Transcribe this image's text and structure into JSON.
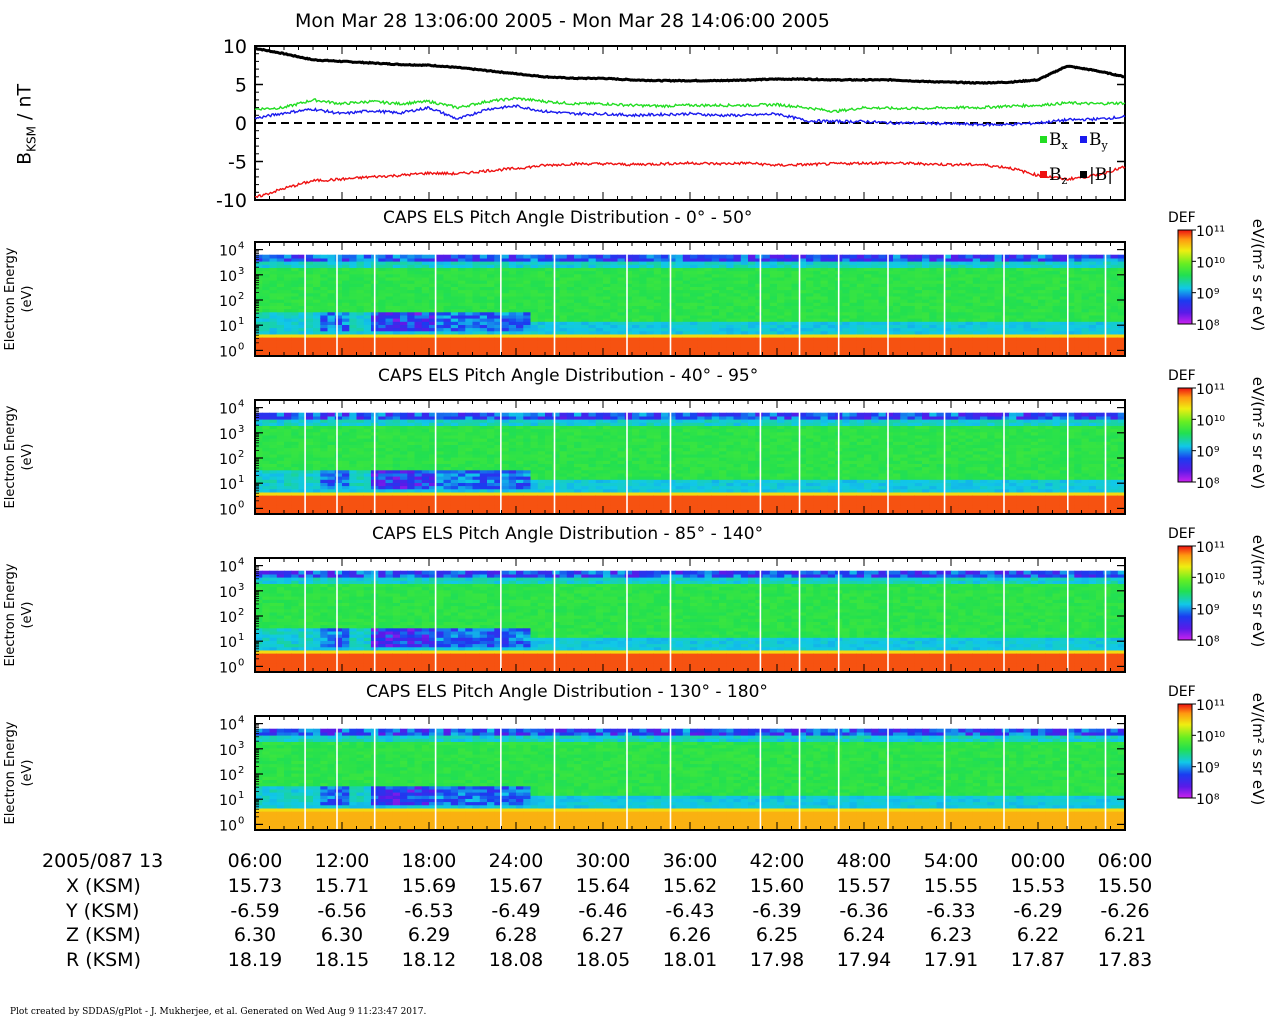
{
  "page": {
    "title": "Mon Mar 28 13:06:00 2005 - Mon Mar 28 14:06:00 2005",
    "credit": "Plot created by SDDAS/gPlot - J. Mukherjee, et al.  Generated on Wed Aug 9 11:23:47 2017."
  },
  "colors": {
    "bx": "#22dd22",
    "by": "#1a1aee",
    "bz": "#ee1111",
    "bmag": "#000000"
  },
  "chart_data": [
    {
      "type": "line",
      "ylabel": "B",
      "ylabel_sub": "KSM",
      "ylabel_unit": " / nT",
      "ylim": [
        -10,
        10
      ],
      "yticks": [
        "10",
        "5",
        "0",
        "-5",
        "-10"
      ],
      "zero_line": "dashed",
      "legend": {
        "placement": "right",
        "entries": [
          {
            "key": "bx",
            "label": "B",
            "sub": "x"
          },
          {
            "key": "by",
            "label": "B",
            "sub": "y"
          },
          {
            "key": "bz",
            "label": "B",
            "sub": "z"
          },
          {
            "key": "bmag",
            "label": "|B|",
            "sub": ""
          }
        ]
      },
      "x_minutes": [
        0,
        2,
        4,
        6,
        8,
        10,
        12,
        14,
        16,
        18,
        20,
        22,
        24,
        26,
        28,
        30,
        32,
        34,
        36,
        38,
        40,
        42,
        44,
        46,
        48,
        50,
        52,
        54,
        56,
        58,
        60
      ],
      "series": [
        {
          "key": "bmag",
          "values": [
            9.7,
            9.0,
            8.2,
            8.0,
            7.8,
            7.6,
            7.5,
            7.2,
            6.8,
            6.4,
            6.0,
            5.8,
            5.8,
            5.6,
            5.5,
            5.5,
            5.5,
            5.6,
            5.7,
            5.7,
            5.6,
            5.6,
            5.6,
            5.4,
            5.3,
            5.2,
            5.3,
            5.6,
            7.4,
            6.8,
            6.0
          ]
        },
        {
          "key": "bx",
          "values": [
            1.8,
            2.0,
            3.0,
            2.5,
            2.8,
            2.5,
            2.8,
            2.0,
            2.8,
            3.2,
            2.8,
            2.5,
            2.5,
            2.3,
            2.2,
            2.3,
            2.3,
            2.3,
            2.4,
            2.0,
            1.5,
            2.0,
            1.9,
            1.9,
            2.0,
            2.0,
            2.2,
            2.3,
            2.6,
            2.5,
            2.6
          ]
        },
        {
          "key": "by",
          "values": [
            0.6,
            1.3,
            1.8,
            1.2,
            1.6,
            1.3,
            2.0,
            0.5,
            1.8,
            2.2,
            1.5,
            1.2,
            1.2,
            1.0,
            1.1,
            1.2,
            1.0,
            1.0,
            1.2,
            0.3,
            0.2,
            0.2,
            0.0,
            0.0,
            -0.1,
            -0.2,
            -0.2,
            0.0,
            0.4,
            0.5,
            0.8
          ]
        },
        {
          "key": "bz",
          "values": [
            -9.7,
            -8.5,
            -7.5,
            -7.3,
            -7.0,
            -6.8,
            -6.5,
            -6.6,
            -6.2,
            -5.9,
            -5.5,
            -5.3,
            -5.3,
            -5.4,
            -5.3,
            -5.2,
            -5.3,
            -5.2,
            -5.5,
            -5.4,
            -5.3,
            -5.2,
            -5.2,
            -5.3,
            -5.4,
            -5.4,
            -5.8,
            -6.8,
            -7.3,
            -6.8,
            -5.7
          ]
        }
      ]
    },
    {
      "type": "heatmap",
      "title": "CAPS ELS Pitch Angle Distribution - 0° - 50°",
      "ylabel": "Electron Energy",
      "ylabel2": "(eV)",
      "ylim": [
        0.6,
        20000
      ],
      "yscale": "log",
      "colorbar": {
        "label": "DEF",
        "unit": "eV/(m² s sr eV)",
        "range": [
          100000000.0,
          100000000000.0
        ],
        "ticks": [
          "10¹¹",
          "10¹⁰",
          "10⁹",
          "10⁸"
        ]
      }
    },
    {
      "type": "heatmap",
      "title": "CAPS ELS Pitch Angle Distribution - 40° - 95°",
      "ylabel": "Electron Energy",
      "ylabel2": "(eV)",
      "ylim": [
        0.6,
        20000
      ],
      "yscale": "log",
      "colorbar": {
        "label": "DEF",
        "unit": "eV/(m² s sr eV)",
        "range": [
          100000000.0,
          100000000000.0
        ],
        "ticks": [
          "10¹¹",
          "10¹⁰",
          "10⁹",
          "10⁸"
        ]
      }
    },
    {
      "type": "heatmap",
      "title": "CAPS ELS Pitch Angle Distribution - 85° - 140°",
      "ylabel": "Electron Energy",
      "ylabel2": "(eV)",
      "ylim": [
        0.6,
        20000
      ],
      "yscale": "log",
      "colorbar": {
        "label": "DEF",
        "unit": "eV/(m² s sr eV)",
        "range": [
          100000000.0,
          100000000000.0
        ],
        "ticks": [
          "10¹¹",
          "10¹⁰",
          "10⁹",
          "10⁸"
        ]
      }
    },
    {
      "type": "heatmap",
      "title": "CAPS ELS Pitch Angle Distribution - 130° - 180°",
      "ylabel": "Electron Energy",
      "ylabel2": "(eV)",
      "ylim": [
        0.6,
        20000
      ],
      "yscale": "log",
      "colorbar": {
        "label": "DEF",
        "unit": "eV/(m² s sr eV)",
        "range": [
          100000000.0,
          100000000000.0
        ],
        "ticks": [
          "10¹¹",
          "10¹⁰",
          "10⁹",
          "10⁸"
        ]
      }
    }
  ],
  "energy_ticks": [
    {
      "label": "10",
      "exp": "0",
      "value": 1
    },
    {
      "label": "10",
      "exp": "1",
      "value": 10
    },
    {
      "label": "10",
      "exp": "2",
      "value": 100
    },
    {
      "label": "10",
      "exp": "3",
      "value": 1000
    },
    {
      "label": "10",
      "exp": "4",
      "value": 10000
    }
  ],
  "ephemeris": {
    "header": "2005/087 13",
    "times": [
      "06:00",
      "12:00",
      "18:00",
      "24:00",
      "30:00",
      "36:00",
      "42:00",
      "48:00",
      "54:00",
      "00:00",
      "06:00"
    ],
    "rows": [
      {
        "label": "X (KSM)",
        "values": [
          "15.73",
          "15.71",
          "15.69",
          "15.67",
          "15.64",
          "15.62",
          "15.60",
          "15.57",
          "15.55",
          "15.53",
          "15.50"
        ]
      },
      {
        "label": "Y (KSM)",
        "values": [
          "-6.59",
          "-6.56",
          "-6.53",
          "-6.49",
          "-6.46",
          "-6.43",
          "-6.39",
          "-6.36",
          "-6.33",
          "-6.29",
          "-6.26"
        ]
      },
      {
        "label": "Z (KSM)",
        "values": [
          "6.30",
          "6.30",
          "6.29",
          "6.28",
          "6.27",
          "6.26",
          "6.25",
          "6.24",
          "6.23",
          "6.22",
          "6.21"
        ]
      },
      {
        "label": "R (KSM)",
        "values": [
          "18.19",
          "18.15",
          "18.12",
          "18.08",
          "18.05",
          "18.01",
          "17.98",
          "17.94",
          "17.91",
          "17.87",
          "17.83"
        ]
      }
    ]
  }
}
